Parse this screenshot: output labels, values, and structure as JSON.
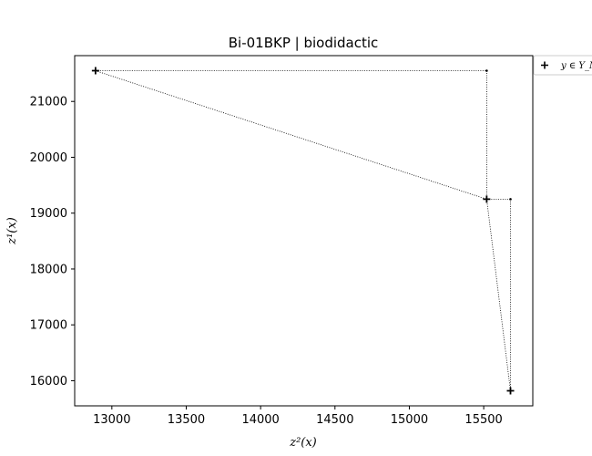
{
  "chart_data": {
    "type": "scatter",
    "title": "Bi-01BKP | biodidactic",
    "xlabel": "z²(x)",
    "ylabel": "z¹(x)",
    "xlim": [
      12750,
      15830
    ],
    "ylim": [
      15550,
      21820
    ],
    "x_ticks": [
      13000,
      13500,
      14000,
      14500,
      15000,
      15500
    ],
    "y_ticks": [
      16000,
      17000,
      18000,
      19000,
      20000,
      21000
    ],
    "grid": false,
    "legend": {
      "placement": "outside-top-right",
      "entries": [
        "y ∈ Y_N"
      ]
    },
    "series": [
      {
        "name": "y ∈ Y_N",
        "marker": "+",
        "color": "#000000",
        "points": [
          {
            "x": 12890,
            "y": 21550
          },
          {
            "x": 15520,
            "y": 19250
          },
          {
            "x": 15680,
            "y": 15820
          }
        ]
      }
    ],
    "local_nadir_points": [
      {
        "x": 15520,
        "y": 21550
      },
      {
        "x": 15680,
        "y": 19250
      }
    ],
    "connecting_lines": "dotted"
  }
}
